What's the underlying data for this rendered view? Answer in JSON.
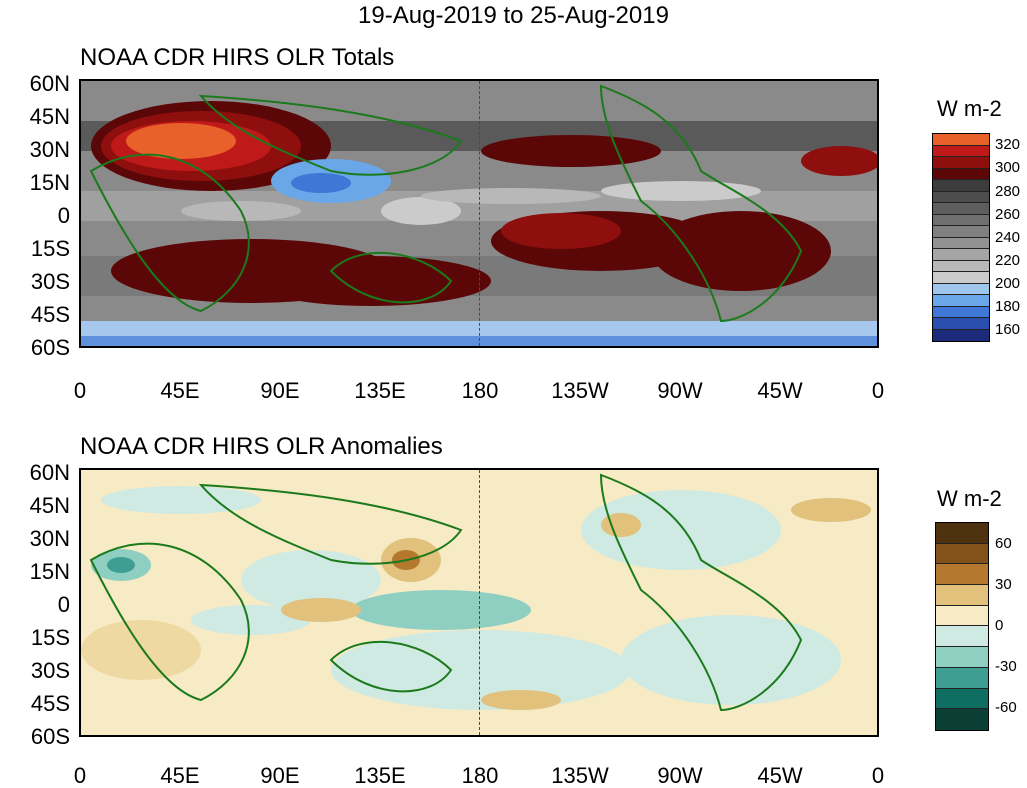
{
  "title": "19-Aug-2019 to 25-Aug-2019",
  "lat_labels": [
    "60N",
    "45N",
    "30N",
    "15N",
    "0",
    "15S",
    "30S",
    "45S",
    "60S"
  ],
  "lon_labels": [
    "0",
    "45E",
    "90E",
    "135E",
    "180",
    "135W",
    "90W",
    "45W",
    "0"
  ],
  "panels": [
    {
      "name": "totals",
      "title": "NOAA CDR HIRS OLR Totals",
      "colorbar": {
        "title": "W m-2",
        "labels": [
          "320",
          "300",
          "280",
          "260",
          "240",
          "220",
          "200",
          "180",
          "160"
        ],
        "colors": [
          "#e8602a",
          "#c0191a",
          "#8f0e0e",
          "#5c0707",
          "#3c3c3c",
          "#4d4d4d",
          "#5e5e5e",
          "#6f6f6f",
          "#808080",
          "#929292",
          "#a5a5a5",
          "#b8b8b8",
          "#cbcbcb",
          "#9fc6ec",
          "#6aa7e8",
          "#3e77d6",
          "#2b4fae",
          "#1c2a7a"
        ]
      }
    },
    {
      "name": "anomalies",
      "title": "NOAA CDR HIRS OLR Anomalies",
      "colorbar": {
        "title": "W m-2",
        "labels": [
          "60",
          "30",
          "0",
          "-30",
          "-60"
        ],
        "colors": [
          "#4e320f",
          "#82521a",
          "#b4792f",
          "#e1c17c",
          "#f7ebc6",
          "#cfeae2",
          "#8fcfc2",
          "#3e9e91",
          "#0f6e62",
          "#0b3f36"
        ]
      }
    }
  ],
  "colors": {
    "coastline": "#1b7a1b",
    "frame": "#000000"
  }
}
